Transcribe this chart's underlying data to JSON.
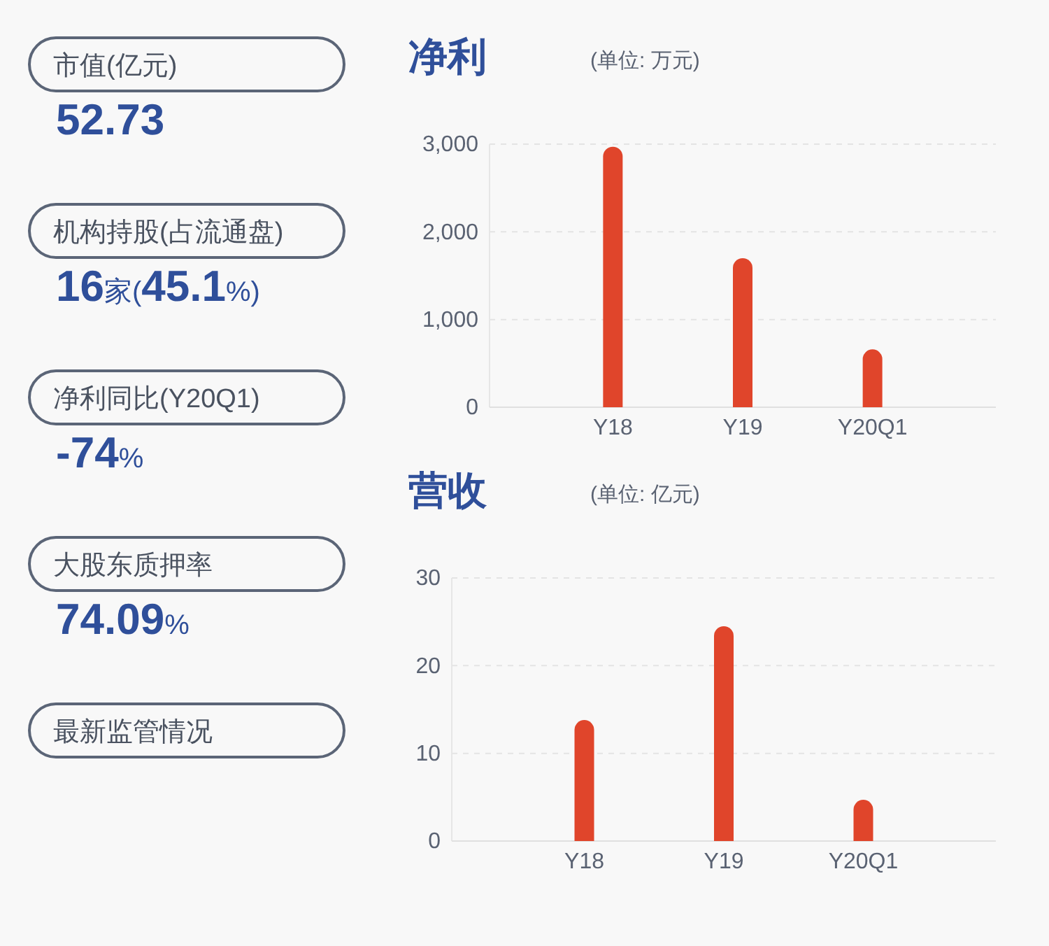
{
  "chart_data": [
    {
      "type": "other",
      "annotations": [
        "市值(亿元)",
        "52.73",
        "机构持股(占流通盘)",
        "16家(45.1%)",
        "净利同比(Y20Q1)",
        "-74%",
        "大股东质押率",
        "74.09%",
        "最新监管情况"
      ]
    },
    {
      "type": "bar",
      "title": "净利",
      "subtitle": "(单位: 万元)",
      "categories": [
        "Y18",
        "Y19",
        "Y20Q1"
      ],
      "values": [
        2970,
        1700,
        660
      ],
      "color": "#e0452b",
      "ylim": [
        0,
        3000
      ],
      "yticks": [
        0,
        {
          "value": 1000,
          "label": "1,000"
        },
        {
          "value": 2000,
          "label": "2,000"
        },
        {
          "value": 3000,
          "label": "3,000"
        }
      ],
      "grid": "y"
    },
    {
      "type": "bar",
      "title": "营收",
      "subtitle": "(单位: 亿元)",
      "categories": [
        "Y18",
        "Y19",
        "Y20Q1"
      ],
      "values": [
        13.8,
        24.5,
        4.7
      ],
      "color": "#e0452b",
      "ylim": [
        0,
        30
      ],
      "yticks": [
        0,
        10,
        20,
        30
      ],
      "grid": "y"
    }
  ]
}
